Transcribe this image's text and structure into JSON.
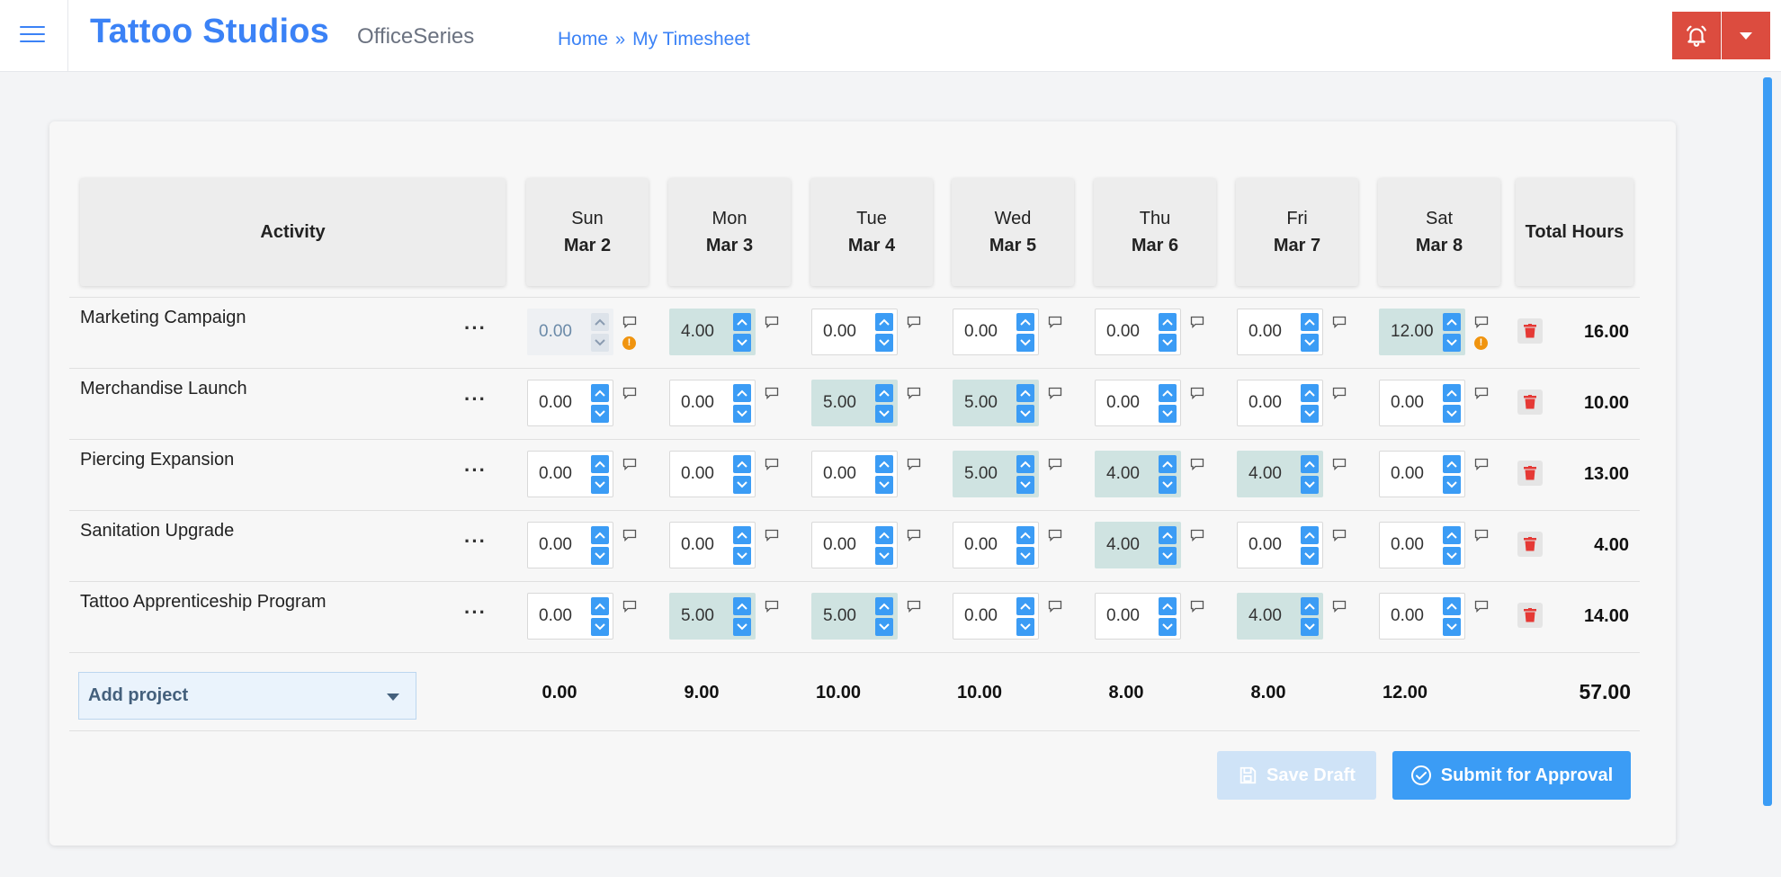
{
  "header": {
    "brand": "Tattoo Studios",
    "suite": "OfficeSeries",
    "breadcrumb": {
      "home": "Home",
      "separator": "»",
      "current": "My Timesheet"
    }
  },
  "colors": {
    "accent": "#3b9cf5",
    "brand": "#3b82f6",
    "danger": "#dc4c3f",
    "highlight_cell": "#cfe3e1",
    "warning": "#f0940f"
  },
  "timesheet": {
    "activity_header": "Activity",
    "total_header": "Total Hours",
    "days": [
      {
        "dow": "Sun",
        "date": "Mar 2"
      },
      {
        "dow": "Mon",
        "date": "Mar 3"
      },
      {
        "dow": "Tue",
        "date": "Mar 4"
      },
      {
        "dow": "Wed",
        "date": "Mar 5"
      },
      {
        "dow": "Thu",
        "date": "Mar 6"
      },
      {
        "dow": "Fri",
        "date": "Mar 7"
      },
      {
        "dow": "Sat",
        "date": "Mar 8"
      }
    ],
    "rows": [
      {
        "activity": "Marketing Campaign",
        "menu": "···",
        "hours": [
          "0.00",
          "4.00",
          "0.00",
          "0.00",
          "0.00",
          "0.00",
          "12.00"
        ],
        "highlighted": [
          false,
          true,
          false,
          false,
          false,
          false,
          true
        ],
        "disabled": [
          true,
          false,
          false,
          false,
          false,
          false,
          false
        ],
        "warnings": [
          true,
          false,
          false,
          false,
          false,
          false,
          true
        ],
        "total": "16.00"
      },
      {
        "activity": "Merchandise Launch",
        "menu": "···",
        "hours": [
          "0.00",
          "0.00",
          "5.00",
          "5.00",
          "0.00",
          "0.00",
          "0.00"
        ],
        "highlighted": [
          false,
          false,
          true,
          true,
          false,
          false,
          false
        ],
        "disabled": [
          false,
          false,
          false,
          false,
          false,
          false,
          false
        ],
        "warnings": [
          false,
          false,
          false,
          false,
          false,
          false,
          false
        ],
        "total": "10.00"
      },
      {
        "activity": "Piercing Expansion",
        "menu": "···",
        "hours": [
          "0.00",
          "0.00",
          "0.00",
          "5.00",
          "4.00",
          "4.00",
          "0.00"
        ],
        "highlighted": [
          false,
          false,
          false,
          true,
          true,
          true,
          false
        ],
        "disabled": [
          false,
          false,
          false,
          false,
          false,
          false,
          false
        ],
        "warnings": [
          false,
          false,
          false,
          false,
          false,
          false,
          false
        ],
        "total": "13.00"
      },
      {
        "activity": "Sanitation Upgrade",
        "menu": "···",
        "hours": [
          "0.00",
          "0.00",
          "0.00",
          "0.00",
          "4.00",
          "0.00",
          "0.00"
        ],
        "highlighted": [
          false,
          false,
          false,
          false,
          true,
          false,
          false
        ],
        "disabled": [
          false,
          false,
          false,
          false,
          false,
          false,
          false
        ],
        "warnings": [
          false,
          false,
          false,
          false,
          false,
          false,
          false
        ],
        "total": "4.00"
      },
      {
        "activity": "Tattoo Apprenticeship Program",
        "menu": "···",
        "hours": [
          "0.00",
          "5.00",
          "5.00",
          "0.00",
          "0.00",
          "4.00",
          "0.00"
        ],
        "highlighted": [
          false,
          true,
          true,
          false,
          false,
          true,
          false
        ],
        "disabled": [
          false,
          false,
          false,
          false,
          false,
          false,
          false
        ],
        "warnings": [
          false,
          false,
          false,
          false,
          false,
          false,
          false
        ],
        "total": "14.00"
      }
    ],
    "day_totals": [
      "0.00",
      "9.00",
      "10.00",
      "10.00",
      "8.00",
      "8.00",
      "12.00"
    ],
    "grand_total": "57.00",
    "add_project_label": "Add project"
  },
  "actions": {
    "save_draft": "Save Draft",
    "submit": "Submit for Approval"
  },
  "icons": {
    "menu": "hamburger-icon",
    "alert": "bell-alert-icon",
    "dropdown": "caret-down-icon",
    "comment": "comment-icon",
    "warning": "info-warning-icon",
    "delete": "trash-icon",
    "save": "floppy-disk-icon",
    "submit": "check-circle-icon"
  }
}
